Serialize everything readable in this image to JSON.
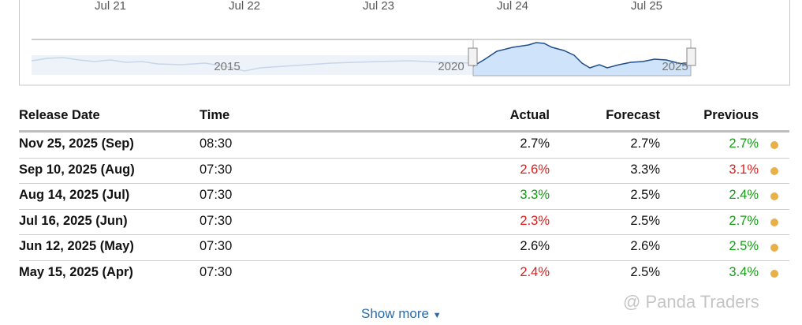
{
  "chart": {
    "top_labels": [
      "Jul 21",
      "Jul 22",
      "Jul 23",
      "Jul 24",
      "Jul 25"
    ],
    "navigator_labels": [
      "2015",
      "2020",
      "2025"
    ]
  },
  "table": {
    "headers": [
      "Release Date",
      "Time",
      "Actual",
      "Forecast",
      "Previous"
    ],
    "rows": [
      [
        {
          "text": "Nov 25, 2025 (Sep)"
        },
        {
          "text": "08:30"
        },
        {
          "text": "2.7%",
          "tone": "neutral"
        },
        {
          "text": "2.7%"
        },
        {
          "text": "2.7%",
          "tone": "up"
        }
      ],
      [
        {
          "text": "Sep 10, 2025 (Aug)"
        },
        {
          "text": "07:30"
        },
        {
          "text": "2.6%",
          "tone": "down"
        },
        {
          "text": "3.3%"
        },
        {
          "text": "3.1%",
          "tone": "down"
        }
      ],
      [
        {
          "text": "Aug 14, 2025 (Jul)"
        },
        {
          "text": "07:30"
        },
        {
          "text": "3.3%",
          "tone": "up"
        },
        {
          "text": "2.5%"
        },
        {
          "text": "2.4%",
          "tone": "up"
        }
      ],
      [
        {
          "text": "Jul 16, 2025 (Jun)"
        },
        {
          "text": "07:30"
        },
        {
          "text": "2.3%",
          "tone": "down"
        },
        {
          "text": "2.5%"
        },
        {
          "text": "2.7%",
          "tone": "up"
        }
      ],
      [
        {
          "text": "Jun 12, 2025 (May)"
        },
        {
          "text": "07:30"
        },
        {
          "text": "2.6%",
          "tone": "neutral"
        },
        {
          "text": "2.6%"
        },
        {
          "text": "2.5%",
          "tone": "up"
        }
      ],
      [
        {
          "text": "May 15, 2025 (Apr)"
        },
        {
          "text": "07:30"
        },
        {
          "text": "2.4%",
          "tone": "down"
        },
        {
          "text": "2.5%"
        },
        {
          "text": "3.4%",
          "tone": "up"
        }
      ]
    ]
  },
  "show_more": "Show more",
  "watermark": "@ Panda Traders"
}
